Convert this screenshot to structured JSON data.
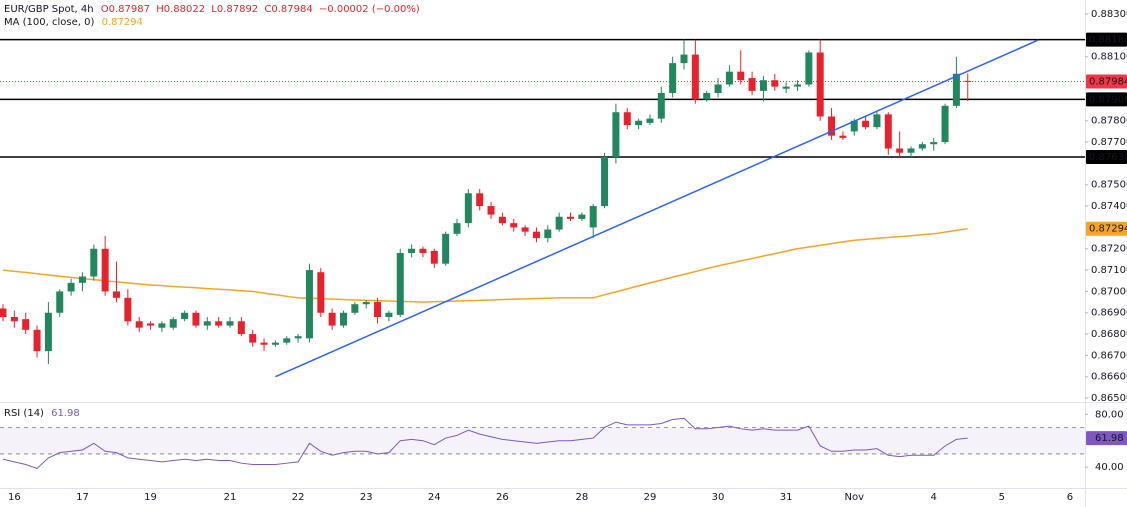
{
  "chart_data": {
    "type": "candlestick",
    "header": {
      "symbol": "EUR/GBP Spot, 4h",
      "open_label": "O0.87987",
      "high_label": "H0.88022",
      "low_label": "L0.87892",
      "close_label": "C0.87984",
      "change_label": "−0.00002 (−0.00%)"
    },
    "categories": [
      null,
      "16",
      null,
      null,
      null,
      null,
      null,
      "17",
      null,
      null,
      null,
      null,
      null,
      "19",
      null,
      null,
      null,
      null,
      null,
      null,
      "21",
      null,
      null,
      null,
      null,
      null,
      "22",
      null,
      null,
      null,
      null,
      null,
      "23",
      null,
      null,
      null,
      null,
      null,
      "24",
      null,
      null,
      null,
      null,
      null,
      "26",
      null,
      null,
      null,
      null,
      null,
      null,
      "28",
      null,
      null,
      null,
      null,
      null,
      "29",
      null,
      null,
      null,
      null,
      null,
      "30",
      null,
      null,
      null,
      null,
      null,
      "31",
      null,
      null,
      null,
      null,
      null,
      "Nov",
      null,
      null,
      null,
      null,
      null,
      null,
      "4",
      null,
      null,
      null,
      null,
      null,
      "5",
      null,
      null,
      null,
      null,
      null,
      "6"
    ],
    "open": [
      0.8692,
      0.8688,
      0.8687,
      0.8682,
      0.8672,
      0.869,
      0.87,
      0.8704,
      0.8707,
      0.872,
      0.87,
      0.8697,
      0.8686,
      0.8685,
      0.8683,
      0.8683,
      0.8687,
      0.869,
      0.8684,
      0.8686,
      0.8684,
      0.8686,
      0.868,
      0.8676,
      0.8675,
      0.8676,
      0.8678,
      0.8678,
      0.8709,
      0.869,
      0.8684,
      0.869,
      0.8694,
      0.8695,
      0.8688,
      0.8689,
      0.8718,
      0.872,
      0.8719,
      0.8713,
      0.8727,
      0.8732,
      0.8746,
      0.874,
      0.8735,
      0.8732,
      0.873,
      0.8728,
      0.8725,
      0.8729,
      0.8735,
      0.8734,
      0.873,
      0.874,
      0.8763,
      0.8784,
      0.8778,
      0.8779,
      0.8781,
      0.8793,
      0.8807,
      0.8811,
      0.879,
      0.8793,
      0.8797,
      0.8803,
      0.88,
      0.8794,
      0.8799,
      0.8795,
      0.8796,
      0.8797,
      0.8812,
      0.8782,
      0.8773,
      0.8775,
      0.878,
      0.8777,
      0.8783,
      0.8767,
      0.8765,
      0.8767,
      0.8769,
      0.877,
      0.8787,
      0.87987,
      null,
      null,
      null,
      null,
      null,
      null,
      null,
      null,
      null
    ],
    "high": [
      0.8694,
      0.8691,
      0.869,
      0.8684,
      0.8695,
      0.8701,
      0.8706,
      0.8709,
      0.8722,
      0.8726,
      0.8714,
      0.8701,
      0.8688,
      0.8686,
      0.8686,
      0.8688,
      0.8691,
      0.8691,
      0.8688,
      0.8688,
      0.8688,
      0.8688,
      0.8682,
      0.8678,
      0.8677,
      0.8679,
      0.868,
      0.8713,
      0.8711,
      0.8692,
      0.8691,
      0.8695,
      0.8696,
      0.8697,
      0.8691,
      0.872,
      0.8722,
      0.8721,
      0.872,
      0.8728,
      0.8734,
      0.8748,
      0.8748,
      0.8742,
      0.8737,
      0.8734,
      0.8731,
      0.873,
      0.8731,
      0.8737,
      0.8737,
      0.8737,
      0.8741,
      0.8765,
      0.8788,
      0.8786,
      0.8781,
      0.8783,
      0.8796,
      0.881,
      0.8818,
      0.8818,
      0.8794,
      0.88,
      0.8806,
      0.8813,
      0.8803,
      0.8801,
      0.8802,
      0.8798,
      0.8799,
      0.8813,
      0.8818,
      0.8786,
      0.8775,
      0.8781,
      0.8782,
      0.8784,
      0.8784,
      0.8775,
      0.8768,
      0.877,
      0.8772,
      0.8788,
      0.881,
      0.88022,
      null,
      null,
      null,
      null,
      null,
      null,
      null,
      null,
      null
    ],
    "low": [
      0.8686,
      0.8683,
      0.868,
      0.8669,
      0.8666,
      0.8688,
      0.8698,
      0.87,
      0.8705,
      0.8698,
      0.8695,
      0.8684,
      0.8681,
      0.8682,
      0.8681,
      0.8682,
      0.8686,
      0.8683,
      0.8682,
      0.8683,
      0.8683,
      0.8679,
      0.8674,
      0.8672,
      0.8674,
      0.8675,
      0.8676,
      0.8676,
      0.8688,
      0.8682,
      0.8683,
      0.8689,
      0.8692,
      0.8685,
      0.8686,
      0.8688,
      0.8716,
      0.8716,
      0.8711,
      0.8712,
      0.8726,
      0.873,
      0.8738,
      0.8734,
      0.8731,
      0.8728,
      0.8726,
      0.8723,
      0.8723,
      0.8728,
      0.8733,
      0.8733,
      0.8725,
      0.8739,
      0.876,
      0.8776,
      0.8776,
      0.8778,
      0.8779,
      0.8791,
      0.8804,
      0.8788,
      0.8789,
      0.8791,
      0.8796,
      0.8797,
      0.8792,
      0.8789,
      0.8794,
      0.8793,
      0.8794,
      0.8796,
      0.878,
      0.8771,
      0.8771,
      0.8773,
      0.8776,
      0.8776,
      0.8764,
      0.8763,
      0.8763,
      0.8766,
      0.8766,
      0.8769,
      0.8786,
      0.87892,
      null,
      null,
      null,
      null,
      null,
      null,
      null,
      null,
      null
    ],
    "close": [
      0.8688,
      0.8686,
      0.8682,
      0.8672,
      0.869,
      0.87,
      0.8704,
      0.8707,
      0.872,
      0.87,
      0.8697,
      0.8686,
      0.8683,
      0.8684,
      0.8685,
      0.8687,
      0.869,
      0.8684,
      0.8686,
      0.8684,
      0.8686,
      0.868,
      0.8676,
      0.8675,
      0.8676,
      0.8678,
      0.8679,
      0.871,
      0.869,
      0.8684,
      0.869,
      0.8694,
      0.8695,
      0.8688,
      0.869,
      0.8718,
      0.872,
      0.8718,
      0.8713,
      0.8727,
      0.8732,
      0.8746,
      0.874,
      0.8736,
      0.8732,
      0.873,
      0.8728,
      0.8725,
      0.8729,
      0.8735,
      0.8734,
      0.8736,
      0.874,
      0.8763,
      0.8784,
      0.8778,
      0.878,
      0.8781,
      0.8793,
      0.8807,
      0.8811,
      0.879,
      0.8793,
      0.8797,
      0.8803,
      0.8799,
      0.8794,
      0.8799,
      0.8796,
      0.8796,
      0.8797,
      0.8812,
      0.8782,
      0.8773,
      0.8772,
      0.878,
      0.8777,
      0.8783,
      0.8767,
      0.8765,
      0.8767,
      0.8769,
      0.877,
      0.8787,
      0.8802,
      0.87984,
      null,
      null,
      null,
      null,
      null,
      null,
      null,
      null,
      null
    ],
    "up_color": "#22865f",
    "down_color": "#e8222d",
    "ma": {
      "name": "MA (100, close, 0)",
      "value_label": "0.87294",
      "color": "#f5a524",
      "values": [
        0.871,
        0.87094,
        0.87089,
        0.87083,
        0.87077,
        0.87071,
        0.87066,
        0.8706,
        0.87055,
        0.8705,
        0.87045,
        0.8704,
        0.87035,
        0.8703,
        0.87027,
        0.87023,
        0.8702,
        0.87017,
        0.87013,
        0.8701,
        0.87007,
        0.87003,
        0.87,
        0.86992,
        0.86985,
        0.86977,
        0.8697,
        0.86968,
        0.86966,
        0.86964,
        0.86962,
        0.8696,
        0.86958,
        0.86957,
        0.86955,
        0.86953,
        0.86952,
        0.8695,
        0.86952,
        0.86953,
        0.86955,
        0.86957,
        0.86958,
        0.8696,
        0.86962,
        0.86963,
        0.86965,
        0.86967,
        0.86968,
        0.8697,
        0.8697,
        0.8697,
        0.8697,
        0.86984,
        0.86998,
        0.87012,
        0.87026,
        0.8704,
        0.87053,
        0.87067,
        0.8708,
        0.87093,
        0.87107,
        0.8712,
        0.87131,
        0.87143,
        0.87154,
        0.87166,
        0.87177,
        0.87189,
        0.872,
        0.87208,
        0.87216,
        0.87224,
        0.87232,
        0.8724,
        0.87244,
        0.87249,
        0.87253,
        0.87257,
        0.87261,
        0.87266,
        0.8727,
        0.87278,
        0.87286,
        0.87294,
        null,
        null,
        null,
        null,
        null,
        null,
        null,
        null,
        null
      ]
    },
    "levels": [
      {
        "value": 0.8818,
        "label": "0.88180"
      },
      {
        "value": 0.879,
        "label": "0.87900"
      },
      {
        "value": 0.8763,
        "label": "0.87630"
      }
    ],
    "level_color": "#000000",
    "trendline": {
      "x": [
        24,
        91.2
      ],
      "y": [
        0.866,
        0.88178
      ],
      "color": "#2962ff"
    },
    "last_price": {
      "value": 0.87984,
      "label": "0.87984",
      "color": "#f23645"
    },
    "ylim": [
      0.86491,
      0.88366
    ],
    "yticks": [
      {
        "value": 0.883,
        "label": "0.88300"
      },
      {
        "value": 0.881,
        "label": "0.88100"
      },
      {
        "value": 0.878,
        "label": "0.87800"
      },
      {
        "value": 0.877,
        "label": "0.87700"
      },
      {
        "value": 0.875,
        "label": "0.87500"
      },
      {
        "value": 0.874,
        "label": "0.87400"
      },
      {
        "value": 0.872,
        "label": "0.87200"
      },
      {
        "value": 0.871,
        "label": "0.87100"
      },
      {
        "value": 0.87,
        "label": "0.87000"
      },
      {
        "value": 0.869,
        "label": "0.86900"
      },
      {
        "value": 0.868,
        "label": "0.86800"
      },
      {
        "value": 0.867,
        "label": "0.86700"
      },
      {
        "value": 0.866,
        "label": "0.86600"
      },
      {
        "value": 0.865,
        "label": "0.86500"
      }
    ],
    "rsi": {
      "name": "RSI (14)",
      "value_label": "61.98",
      "color": "#7e57c2",
      "values": [
        46,
        44,
        42,
        39,
        47,
        51,
        52,
        53,
        58,
        52,
        51,
        47,
        46,
        45,
        44,
        45,
        46,
        45,
        46,
        45,
        45,
        43,
        42,
        42,
        42,
        43,
        44,
        58,
        52,
        49,
        51,
        52,
        52,
        50,
        51,
        60,
        61,
        60,
        57,
        62,
        64,
        68,
        65,
        63,
        61,
        60,
        59,
        58,
        59,
        60,
        60,
        61,
        62,
        70,
        74,
        72,
        72,
        72,
        73,
        76,
        77,
        69,
        69,
        70,
        71,
        69,
        68,
        69,
        68,
        68,
        68,
        71,
        56,
        52,
        52,
        53,
        53,
        54,
        49,
        48,
        49,
        49,
        49,
        56,
        61,
        61.98,
        null,
        null,
        null,
        null,
        null,
        null,
        null,
        null,
        null
      ],
      "ylim": [
        25,
        87
      ],
      "yticks": [
        {
          "value": 80,
          "label": "80.00"
        },
        {
          "value": 40,
          "label": "40.00"
        }
      ],
      "bands": [
        50,
        70
      ]
    }
  }
}
